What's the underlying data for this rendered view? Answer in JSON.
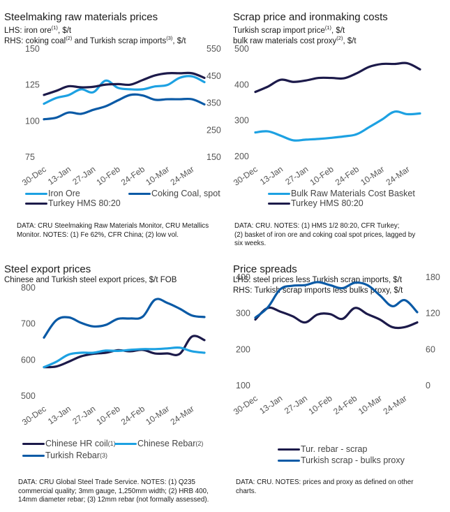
{
  "colors": {
    "light_blue": "#1da1e2",
    "mid_blue": "#0a5aa6",
    "dark_navy": "#1c1a4a"
  },
  "panels": [
    {
      "title": "Steelmaking raw materials prices",
      "subtitle_lines": [
        {
          "parts": [
            {
              "t": "LHS:  iron ore"
            },
            {
              "sup": "(1)"
            },
            {
              "t": ", $/t"
            }
          ]
        },
        {
          "parts": [
            {
              "t": "RHS: coking coal"
            },
            {
              "sup": "(2)"
            },
            {
              "t": " and Turkish scrap imports"
            },
            {
              "sup": "(3)"
            },
            {
              "t": ", $/t"
            }
          ]
        }
      ],
      "legend": [
        {
          "label": "Iron Ore",
          "color": "#1da1e2"
        },
        {
          "label": "Coking Coal, spot",
          "color": "#0a5aa6"
        },
        {
          "label": "Turkey HMS 80:20",
          "color": "#1c1a4a"
        }
      ],
      "note": "DATA: CRU Steelmaking Raw Materials Monitor, CRU Metallics\nMonitor.  NOTES: (1) Fe 62%, CFR China; (2) low vol."
    },
    {
      "title": "Scrap price and ironmaking costs",
      "subtitle_lines": [
        {
          "parts": [
            {
              "t": "Turkish scrap import price"
            },
            {
              "sup": "(1)"
            },
            {
              "t": ", $/t"
            }
          ]
        },
        {
          "parts": [
            {
              "t": "bulk raw materials cost proxy"
            },
            {
              "sup": "(2)"
            },
            {
              "t": ", $/t"
            }
          ]
        }
      ],
      "legend": [
        {
          "label": "Bulk Raw Materials Cost Basket",
          "color": "#1da1e2"
        },
        {
          "label": "Turkey HMS 80:20",
          "color": "#1c1a4a"
        }
      ],
      "note": "DATA: CRU.  NOTES: (1) HMS 1/2 80:20, CFR Turkey;\n(2) basket of iron ore and coking coal spot prices, lagged by\nsix weeks."
    },
    {
      "title": "Steel export prices",
      "subtitle_lines": [
        {
          "parts": [
            {
              "t": "Chinese and Turkish steel export prices, $/t FOB"
            }
          ]
        }
      ],
      "legend": [
        {
          "label": "Chinese HR coil",
          "sup": "(1)",
          "color": "#1c1a4a"
        },
        {
          "label": "Chinese Rebar ",
          "sup": "(2)",
          "color": "#1da1e2"
        },
        {
          "label": "Turkish Rebar",
          "sup": "(3)",
          "color": "#0a5aa6"
        }
      ],
      "note": "DATA: CRU Global Steel Trade Service. NOTES: (1) Q235\ncommercial quality; 3mm gauge, 1,250mm width; (2) HRB 400,\n14mm diameter rebar; (3) 12mm rebar (not formally assessed)."
    },
    {
      "title": "Price spreads",
      "subtitle_lines": [
        {
          "parts": [
            {
              "t": "LHS: steel prices less Turkish scrap imports, $/t"
            }
          ]
        },
        {
          "parts": [
            {
              "t": "RHS: Turkish scrap imports less bulks proxy, $/t"
            }
          ]
        }
      ],
      "legend": [
        {
          "label": "Tur. rebar - scrap",
          "color": "#1c1a4a"
        },
        {
          "label": "Turkish scrap - bulks proxy",
          "color": "#0a5aa6"
        }
      ],
      "note": "DATA: CRU.  NOTES: prices and proxy as defined on other\ncharts."
    }
  ],
  "chart_data": [
    {
      "type": "line",
      "title": "Steelmaking raw materials prices",
      "x_tick_labels": [
        "30-Dec",
        "13-Jan",
        "27-Jan",
        "10-Feb",
        "24-Feb",
        "10-Mar",
        "24-Mar"
      ],
      "x": [
        "30-Dec",
        "06-Jan",
        "13-Jan",
        "20-Jan",
        "27-Jan",
        "03-Feb",
        "10-Feb",
        "17-Feb",
        "24-Feb",
        "03-Mar",
        "10-Mar",
        "17-Mar",
        "24-Mar",
        "31-Mar"
      ],
      "y_left": {
        "label": "iron ore, $/t",
        "lim": [
          75,
          150
        ],
        "ticks": [
          75,
          100,
          125,
          150
        ]
      },
      "y_right": {
        "label": "coking coal and Turkish scrap imports, $/t",
        "lim": [
          150,
          550
        ],
        "ticks": [
          150,
          250,
          350,
          450,
          550
        ]
      },
      "series": [
        {
          "name": "Iron Ore",
          "axis": "left",
          "color": "#1da1e2",
          "values": [
            112,
            116,
            118,
            122,
            120,
            128,
            123,
            122,
            122,
            124,
            125,
            130,
            131,
            127
          ]
        },
        {
          "name": "Coking Coal, spot",
          "axis": "right",
          "color": "#0a5aa6",
          "values": [
            290,
            296,
            315,
            310,
            325,
            338,
            360,
            380,
            378,
            362,
            364,
            364,
            364,
            345
          ]
        },
        {
          "name": "Turkey HMS 80:20",
          "axis": "right",
          "color": "#1c1a4a",
          "values": [
            380,
            395,
            412,
            408,
            410,
            418,
            420,
            418,
            435,
            452,
            460,
            460,
            460,
            443
          ]
        }
      ],
      "legend_position": "bottom",
      "grid": false
    },
    {
      "type": "line",
      "title": "Scrap price and ironmaking costs",
      "x_tick_labels": [
        "30-Dec",
        "13-Jan",
        "27-Jan",
        "10-Feb",
        "24-Feb",
        "10-Mar",
        "24-Mar"
      ],
      "x": [
        "30-Dec",
        "06-Jan",
        "13-Jan",
        "20-Jan",
        "27-Jan",
        "03-Feb",
        "10-Feb",
        "17-Feb",
        "24-Feb",
        "03-Mar",
        "10-Mar",
        "17-Mar",
        "24-Mar",
        "31-Mar"
      ],
      "y_left": {
        "label": "$/t",
        "lim": [
          200,
          500
        ],
        "ticks": [
          200,
          300,
          400,
          500
        ]
      },
      "series": [
        {
          "name": "Bulk Raw Materials Cost Basket",
          "axis": "left",
          "color": "#1da1e2",
          "values": [
            267,
            270,
            258,
            245,
            247,
            249,
            252,
            256,
            262,
            282,
            303,
            325,
            318,
            320
          ]
        },
        {
          "name": "Turkey HMS 80:20",
          "axis": "left",
          "color": "#1c1a4a",
          "values": [
            380,
            395,
            414,
            408,
            412,
            419,
            419,
            418,
            432,
            450,
            458,
            458,
            460,
            443
          ]
        }
      ],
      "legend_position": "bottom",
      "grid": false
    },
    {
      "type": "line",
      "title": "Steel export prices",
      "x_tick_labels": [
        "30-Dec",
        "13-Jan",
        "27-Jan",
        "10-Feb",
        "24-Feb",
        "10-Mar",
        "24-Mar"
      ],
      "x": [
        "30-Dec",
        "06-Jan",
        "13-Jan",
        "20-Jan",
        "27-Jan",
        "03-Feb",
        "10-Feb",
        "17-Feb",
        "24-Feb",
        "03-Mar",
        "10-Mar",
        "17-Mar",
        "24-Mar",
        "31-Mar"
      ],
      "y_left": {
        "label": "$/t FOB",
        "lim": [
          500,
          800
        ],
        "ticks": [
          500,
          600,
          700,
          800
        ]
      },
      "series": [
        {
          "name": "Chinese HR coil",
          "axis": "left",
          "color": "#1c1a4a",
          "values": [
            580,
            582,
            595,
            610,
            617,
            620,
            627,
            624,
            628,
            618,
            618,
            617,
            665,
            655
          ]
        },
        {
          "name": "Chinese Rebar",
          "axis": "left",
          "color": "#1da1e2",
          "values": [
            580,
            595,
            615,
            620,
            620,
            626,
            625,
            628,
            630,
            630,
            632,
            634,
            624,
            620
          ]
        },
        {
          "name": "Turkish Rebar",
          "axis": "left",
          "color": "#0a5aa6",
          "values": [
            662,
            710,
            718,
            703,
            693,
            697,
            714,
            715,
            720,
            767,
            758,
            742,
            723,
            719
          ]
        }
      ],
      "legend_position": "bottom",
      "grid": false
    },
    {
      "type": "line",
      "title": "Price spreads",
      "x_tick_labels": [
        "30-Dec",
        "13-Jan",
        "27-Jan",
        "10-Feb",
        "24-Feb",
        "10-Mar",
        "24-Mar"
      ],
      "x": [
        "30-Dec",
        "06-Jan",
        "13-Jan",
        "20-Jan",
        "27-Jan",
        "03-Feb",
        "10-Feb",
        "17-Feb",
        "24-Feb",
        "03-Mar",
        "10-Mar",
        "17-Mar",
        "24-Mar",
        "31-Mar"
      ],
      "y_left": {
        "label": "steel prices less Turkish scrap imports, $/t",
        "lim": [
          100,
          400
        ],
        "ticks": [
          100,
          200,
          300,
          400
        ]
      },
      "y_right": {
        "label": "Turkish scrap imports less bulks proxy, $/t",
        "lim": [
          0,
          180
        ],
        "ticks": [
          0,
          60,
          120,
          180
        ]
      },
      "series": [
        {
          "name": "Tur. rebar - scrap",
          "axis": "left",
          "color": "#1c1a4a",
          "values": [
            283,
            315,
            305,
            292,
            275,
            297,
            298,
            285,
            315,
            298,
            283,
            262,
            262,
            275
          ]
        },
        {
          "name": "Turkish scrap - bulks proxy",
          "axis": "right",
          "color": "#0a5aa6",
          "values": [
            113,
            130,
            160,
            166,
            167,
            172,
            167,
            162,
            171,
            167,
            150,
            132,
            142,
            122
          ]
        }
      ],
      "legend_position": "bottom",
      "grid": false
    }
  ]
}
